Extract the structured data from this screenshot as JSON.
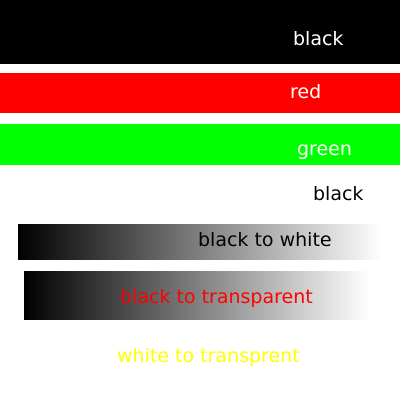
{
  "bands": [
    {
      "label": "black",
      "background": "#000000",
      "text_color": "#ffffff"
    },
    {
      "label": "red",
      "background": "#ff0000",
      "text_color": "#ffffff"
    },
    {
      "label": "green",
      "background": "#00ff00",
      "text_color": "#ffffff"
    },
    {
      "label": "black",
      "background": "none",
      "text_color": "#000000"
    },
    {
      "label": "black to white",
      "gradient": [
        "#000000",
        "#ffffff"
      ],
      "text_color": "#000000"
    },
    {
      "label": "black to transparent",
      "gradient": [
        "#000000",
        "transparent"
      ],
      "text_color": "#ff0000"
    },
    {
      "label": "white to transprent",
      "gradient": [
        "#ffffff",
        "transparent"
      ],
      "text_color": "#ffff00"
    }
  ]
}
